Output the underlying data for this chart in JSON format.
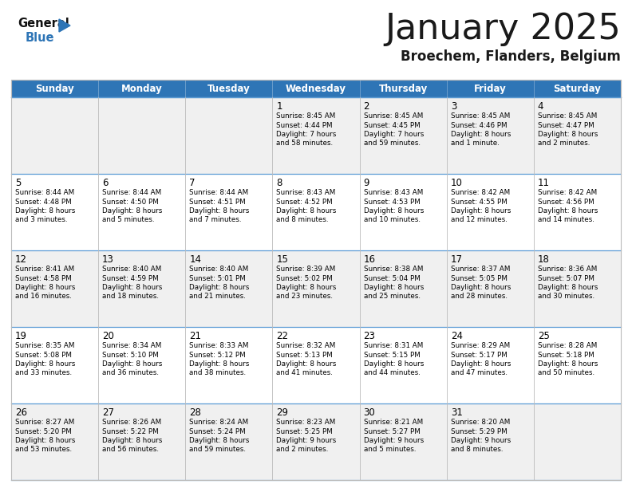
{
  "title": "January 2025",
  "subtitle": "Broechem, Flanders, Belgium",
  "days_of_week": [
    "Sunday",
    "Monday",
    "Tuesday",
    "Wednesday",
    "Thursday",
    "Friday",
    "Saturday"
  ],
  "header_bg": "#2E75B6",
  "header_text": "#FFFFFF",
  "cell_bg_light": "#F0F0F0",
  "cell_bg_white": "#FFFFFF",
  "cell_text": "#000000",
  "border_color": "#BBBBBB",
  "row_line_color": "#5B9BD5",
  "title_color": "#1a1a1a",
  "subtitle_color": "#1a1a1a",
  "logo_general_color": "#111111",
  "logo_blue_color": "#2E75B6",
  "calendar_data": [
    [
      null,
      null,
      null,
      {
        "day": 1,
        "sunrise": "8:45 AM",
        "sunset": "4:44 PM",
        "daylight1": "7 hours",
        "daylight2": "and 58 minutes."
      },
      {
        "day": 2,
        "sunrise": "8:45 AM",
        "sunset": "4:45 PM",
        "daylight1": "7 hours",
        "daylight2": "and 59 minutes."
      },
      {
        "day": 3,
        "sunrise": "8:45 AM",
        "sunset": "4:46 PM",
        "daylight1": "8 hours",
        "daylight2": "and 1 minute."
      },
      {
        "day": 4,
        "sunrise": "8:45 AM",
        "sunset": "4:47 PM",
        "daylight1": "8 hours",
        "daylight2": "and 2 minutes."
      }
    ],
    [
      {
        "day": 5,
        "sunrise": "8:44 AM",
        "sunset": "4:48 PM",
        "daylight1": "8 hours",
        "daylight2": "and 3 minutes."
      },
      {
        "day": 6,
        "sunrise": "8:44 AM",
        "sunset": "4:50 PM",
        "daylight1": "8 hours",
        "daylight2": "and 5 minutes."
      },
      {
        "day": 7,
        "sunrise": "8:44 AM",
        "sunset": "4:51 PM",
        "daylight1": "8 hours",
        "daylight2": "and 7 minutes."
      },
      {
        "day": 8,
        "sunrise": "8:43 AM",
        "sunset": "4:52 PM",
        "daylight1": "8 hours",
        "daylight2": "and 8 minutes."
      },
      {
        "day": 9,
        "sunrise": "8:43 AM",
        "sunset": "4:53 PM",
        "daylight1": "8 hours",
        "daylight2": "and 10 minutes."
      },
      {
        "day": 10,
        "sunrise": "8:42 AM",
        "sunset": "4:55 PM",
        "daylight1": "8 hours",
        "daylight2": "and 12 minutes."
      },
      {
        "day": 11,
        "sunrise": "8:42 AM",
        "sunset": "4:56 PM",
        "daylight1": "8 hours",
        "daylight2": "and 14 minutes."
      }
    ],
    [
      {
        "day": 12,
        "sunrise": "8:41 AM",
        "sunset": "4:58 PM",
        "daylight1": "8 hours",
        "daylight2": "and 16 minutes."
      },
      {
        "day": 13,
        "sunrise": "8:40 AM",
        "sunset": "4:59 PM",
        "daylight1": "8 hours",
        "daylight2": "and 18 minutes."
      },
      {
        "day": 14,
        "sunrise": "8:40 AM",
        "sunset": "5:01 PM",
        "daylight1": "8 hours",
        "daylight2": "and 21 minutes."
      },
      {
        "day": 15,
        "sunrise": "8:39 AM",
        "sunset": "5:02 PM",
        "daylight1": "8 hours",
        "daylight2": "and 23 minutes."
      },
      {
        "day": 16,
        "sunrise": "8:38 AM",
        "sunset": "5:04 PM",
        "daylight1": "8 hours",
        "daylight2": "and 25 minutes."
      },
      {
        "day": 17,
        "sunrise": "8:37 AM",
        "sunset": "5:05 PM",
        "daylight1": "8 hours",
        "daylight2": "and 28 minutes."
      },
      {
        "day": 18,
        "sunrise": "8:36 AM",
        "sunset": "5:07 PM",
        "daylight1": "8 hours",
        "daylight2": "and 30 minutes."
      }
    ],
    [
      {
        "day": 19,
        "sunrise": "8:35 AM",
        "sunset": "5:08 PM",
        "daylight1": "8 hours",
        "daylight2": "and 33 minutes."
      },
      {
        "day": 20,
        "sunrise": "8:34 AM",
        "sunset": "5:10 PM",
        "daylight1": "8 hours",
        "daylight2": "and 36 minutes."
      },
      {
        "day": 21,
        "sunrise": "8:33 AM",
        "sunset": "5:12 PM",
        "daylight1": "8 hours",
        "daylight2": "and 38 minutes."
      },
      {
        "day": 22,
        "sunrise": "8:32 AM",
        "sunset": "5:13 PM",
        "daylight1": "8 hours",
        "daylight2": "and 41 minutes."
      },
      {
        "day": 23,
        "sunrise": "8:31 AM",
        "sunset": "5:15 PM",
        "daylight1": "8 hours",
        "daylight2": "and 44 minutes."
      },
      {
        "day": 24,
        "sunrise": "8:29 AM",
        "sunset": "5:17 PM",
        "daylight1": "8 hours",
        "daylight2": "and 47 minutes."
      },
      {
        "day": 25,
        "sunrise": "8:28 AM",
        "sunset": "5:18 PM",
        "daylight1": "8 hours",
        "daylight2": "and 50 minutes."
      }
    ],
    [
      {
        "day": 26,
        "sunrise": "8:27 AM",
        "sunset": "5:20 PM",
        "daylight1": "8 hours",
        "daylight2": "and 53 minutes."
      },
      {
        "day": 27,
        "sunrise": "8:26 AM",
        "sunset": "5:22 PM",
        "daylight1": "8 hours",
        "daylight2": "and 56 minutes."
      },
      {
        "day": 28,
        "sunrise": "8:24 AM",
        "sunset": "5:24 PM",
        "daylight1": "8 hours",
        "daylight2": "and 59 minutes."
      },
      {
        "day": 29,
        "sunrise": "8:23 AM",
        "sunset": "5:25 PM",
        "daylight1": "9 hours",
        "daylight2": "and 2 minutes."
      },
      {
        "day": 30,
        "sunrise": "8:21 AM",
        "sunset": "5:27 PM",
        "daylight1": "9 hours",
        "daylight2": "and 5 minutes."
      },
      {
        "day": 31,
        "sunrise": "8:20 AM",
        "sunset": "5:29 PM",
        "daylight1": "9 hours",
        "daylight2": "and 8 minutes."
      },
      null
    ]
  ]
}
